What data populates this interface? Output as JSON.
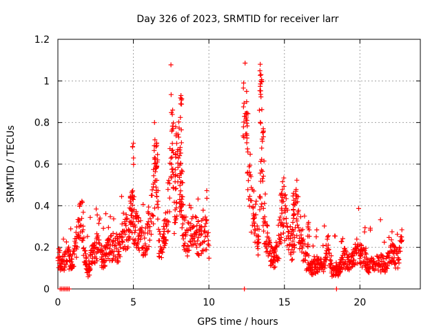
{
  "chart_data": {
    "type": "scatter",
    "title": "Day 326 of 2023, SRMTID for receiver larr",
    "xlabel": "GPS time / hours",
    "ylabel": "SRMTID / TECUs",
    "xlim": [
      0,
      24
    ],
    "ylim": [
      0,
      1.2
    ],
    "xticks": [
      0,
      5,
      10,
      15,
      20
    ],
    "yticks": [
      0,
      0.2,
      0.4,
      0.6,
      0.8,
      1.0,
      1.2
    ],
    "xtick_labels": [
      "0",
      "5",
      "10",
      "15",
      "20"
    ],
    "ytick_labels": [
      "0",
      "0.2",
      "0.4",
      "0.6",
      "0.8",
      "1",
      "1.2"
    ],
    "grid": true,
    "marker": "+",
    "color": "#ff0000",
    "series": [
      {
        "name": "SRMTID",
        "trend": [
          [
            0.0,
            0.16
          ],
          [
            0.3,
            0.12
          ],
          [
            0.6,
            0.17
          ],
          [
            0.9,
            0.12
          ],
          [
            1.2,
            0.2
          ],
          [
            1.4,
            0.3
          ],
          [
            1.6,
            0.35
          ],
          [
            1.8,
            0.14
          ],
          [
            2.0,
            0.08
          ],
          [
            2.3,
            0.17
          ],
          [
            2.6,
            0.2
          ],
          [
            3.0,
            0.15
          ],
          [
            3.3,
            0.18
          ],
          [
            3.6,
            0.21
          ],
          [
            4.0,
            0.19
          ],
          [
            4.3,
            0.24
          ],
          [
            4.6,
            0.28
          ],
          [
            4.9,
            0.35
          ],
          [
            5.1,
            0.3
          ],
          [
            5.4,
            0.26
          ],
          [
            5.8,
            0.22
          ],
          [
            6.2,
            0.35
          ],
          [
            6.5,
            0.6
          ],
          [
            6.7,
            0.22
          ],
          [
            7.0,
            0.2
          ],
          [
            7.3,
            0.4
          ],
          [
            7.5,
            0.75
          ],
          [
            7.7,
            0.38
          ],
          [
            8.0,
            0.62
          ],
          [
            8.3,
            0.3
          ],
          [
            8.6,
            0.24
          ],
          [
            9.0,
            0.28
          ],
          [
            9.4,
            0.24
          ],
          [
            9.8,
            0.28
          ],
          [
            10.0,
            0.22
          ],
          [
            12.4,
            0.85
          ],
          [
            12.6,
            0.65
          ],
          [
            12.8,
            0.4
          ],
          [
            13.0,
            0.35
          ],
          [
            13.3,
            0.2
          ],
          [
            13.5,
            0.6
          ],
          [
            13.7,
            0.28
          ],
          [
            14.0,
            0.18
          ],
          [
            14.3,
            0.14
          ],
          [
            14.6,
            0.2
          ],
          [
            14.9,
            0.4
          ],
          [
            15.2,
            0.3
          ],
          [
            15.5,
            0.2
          ],
          [
            15.8,
            0.38
          ],
          [
            16.1,
            0.25
          ],
          [
            16.4,
            0.14
          ],
          [
            16.8,
            0.1
          ],
          [
            17.2,
            0.12
          ],
          [
            17.6,
            0.11
          ],
          [
            17.9,
            0.2
          ],
          [
            18.2,
            0.08
          ],
          [
            18.6,
            0.09
          ],
          [
            19.0,
            0.15
          ],
          [
            19.4,
            0.12
          ],
          [
            19.8,
            0.18
          ],
          [
            20.2,
            0.15
          ],
          [
            20.5,
            0.12
          ],
          [
            20.9,
            0.11
          ],
          [
            21.3,
            0.13
          ],
          [
            21.7,
            0.11
          ],
          [
            22.1,
            0.18
          ],
          [
            22.5,
            0.14
          ],
          [
            22.8,
            0.23
          ]
        ],
        "peaks": [
          [
            5.0,
            0.7
          ],
          [
            4.8,
            0.44
          ],
          [
            6.4,
            0.8
          ],
          [
            6.55,
            0.69
          ],
          [
            7.0,
            0.3
          ],
          [
            7.6,
            0.86
          ],
          [
            7.8,
            0.78
          ],
          [
            8.15,
            0.93
          ],
          [
            8.1,
            0.68
          ],
          [
            8.2,
            0.57
          ],
          [
            12.3,
            0.99
          ],
          [
            12.5,
            0.9
          ],
          [
            13.4,
            1.08
          ],
          [
            13.45,
            1.03
          ],
          [
            13.6,
            0.77
          ],
          [
            14.8,
            0.46
          ],
          [
            15.6,
            0.46
          ],
          [
            16.6,
            0.32
          ]
        ],
        "zero_points": [
          [
            0.15,
            0
          ],
          [
            0.25,
            0
          ],
          [
            0.35,
            0
          ],
          [
            0.45,
            0
          ],
          [
            0.55,
            0
          ],
          [
            0.65,
            0
          ],
          [
            0.75,
            0
          ],
          [
            12.35,
            0
          ],
          [
            18.45,
            0
          ]
        ]
      }
    ]
  }
}
